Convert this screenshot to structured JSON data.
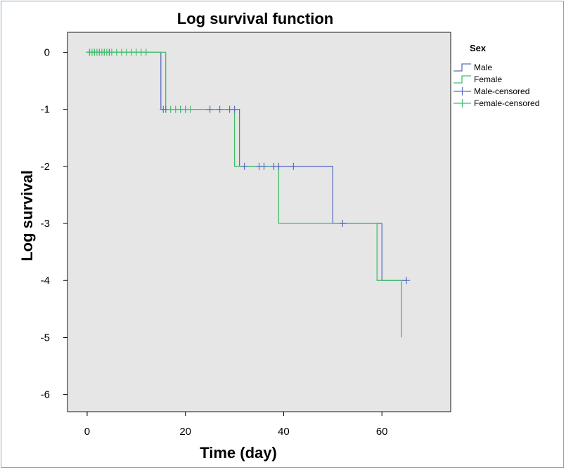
{
  "chart_data": {
    "type": "line",
    "title": "Log survival function",
    "xlabel": "Time (day)",
    "ylabel": "Log survival",
    "xlim": [
      -4,
      74
    ],
    "ylim": [
      -6.3,
      0.35
    ],
    "xticks": [
      0,
      20,
      40,
      60
    ],
    "yticks": [
      0,
      -1,
      -2,
      -3,
      -4,
      -5,
      -6
    ],
    "grid": false,
    "legend": {
      "title": "Sex",
      "placement": "right",
      "entries": [
        "Male",
        "Female",
        "Male-censored",
        "Female-censored"
      ]
    },
    "series": [
      {
        "name": "Male",
        "color": "#5b6fc4",
        "step_points": [
          [
            0,
            0
          ],
          [
            15,
            0
          ],
          [
            15,
            -1
          ],
          [
            31,
            -1
          ],
          [
            31,
            -2
          ],
          [
            50,
            -2
          ],
          [
            50,
            -3
          ],
          [
            60,
            -3
          ],
          [
            60,
            -4
          ],
          [
            65,
            -4
          ]
        ]
      },
      {
        "name": "Female",
        "color": "#3fbf6a",
        "step_points": [
          [
            0,
            0
          ],
          [
            16,
            0
          ],
          [
            16,
            -1
          ],
          [
            30,
            -1
          ],
          [
            30,
            -2
          ],
          [
            39,
            -2
          ],
          [
            39,
            -3
          ],
          [
            59,
            -3
          ],
          [
            59,
            -4
          ],
          [
            64,
            -4
          ],
          [
            64,
            -5
          ]
        ]
      }
    ],
    "censored": [
      {
        "name": "Male-censored",
        "color": "#5b6fc4",
        "points": [
          [
            0.5,
            0
          ],
          [
            1.5,
            0
          ],
          [
            2.5,
            0
          ],
          [
            3.5,
            0
          ],
          [
            4.5,
            0
          ],
          [
            15.5,
            -1
          ],
          [
            16,
            -1
          ],
          [
            19,
            -1
          ],
          [
            20,
            -1
          ],
          [
            25,
            -1
          ],
          [
            27,
            -1
          ],
          [
            29,
            -1
          ],
          [
            30,
            -1
          ],
          [
            32,
            -2
          ],
          [
            35,
            -2
          ],
          [
            36,
            -2
          ],
          [
            38,
            -2
          ],
          [
            39,
            -2
          ],
          [
            42,
            -2
          ],
          [
            52,
            -3
          ],
          [
            65,
            -4
          ]
        ]
      },
      {
        "name": "Female-censored",
        "color": "#3fbf6a",
        "points": [
          [
            0.5,
            0
          ],
          [
            1,
            0
          ],
          [
            1.5,
            0
          ],
          [
            2,
            0
          ],
          [
            2.5,
            0
          ],
          [
            3,
            0
          ],
          [
            3.5,
            0
          ],
          [
            4,
            0
          ],
          [
            5,
            0
          ],
          [
            6,
            0
          ],
          [
            7,
            0
          ],
          [
            8,
            0
          ],
          [
            9,
            0
          ],
          [
            10,
            0
          ],
          [
            11,
            0
          ],
          [
            12,
            0
          ],
          [
            17,
            -1
          ],
          [
            18,
            -1
          ],
          [
            19,
            -1
          ],
          [
            20,
            -1
          ],
          [
            21,
            -1
          ]
        ]
      }
    ]
  }
}
